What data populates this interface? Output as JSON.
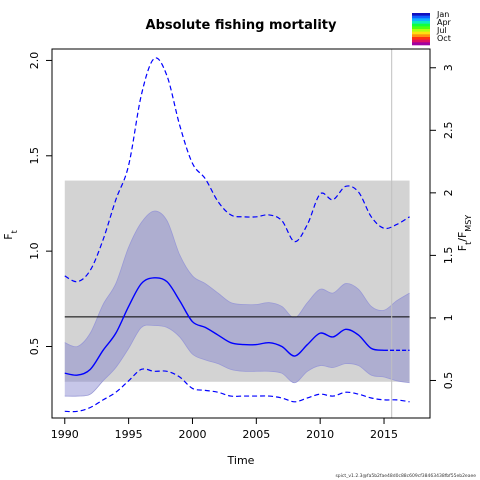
{
  "chart_data": {
    "type": "line",
    "title": "Absolute fishing mortality",
    "xlabel": "Time",
    "ylabel_left": "F_t",
    "ylabel_right": "F_t/F_MSY",
    "xlim": [
      1989.0,
      2018.6
    ],
    "ylim": [
      0.125,
      2.06
    ],
    "ylim_right": [
      0.2,
      3.15
    ],
    "x_ticks": [
      1990,
      1995,
      2000,
      2005,
      2010,
      2015
    ],
    "x_tick_labels": [
      "1990",
      "1995",
      "2000",
      "2005",
      "2010",
      "2015"
    ],
    "y_ticks": [
      0.5,
      1.0,
      1.5,
      2.0
    ],
    "y_tick_labels": [
      "0.5",
      "1.0",
      "1.5",
      "2.0"
    ],
    "y_right_ticks": [
      0.5,
      1,
      1.5,
      2,
      2.5,
      3
    ],
    "y_right_tick_labels": [
      "0.5",
      "1",
      "1.5",
      "2",
      "2.5",
      "3"
    ],
    "fmsy": 0.655,
    "fmsy_ci": [
      0.315,
      1.37
    ],
    "last_obs_year": 2015.6,
    "x": [
      1990,
      1991,
      1992,
      1993,
      1994,
      1995,
      1996,
      1997,
      1998,
      1999,
      2000,
      2001,
      2002,
      2003,
      2004,
      2005,
      2006,
      2007,
      2008,
      2009,
      2010,
      2011,
      2012,
      2013,
      2014,
      2015,
      2016,
      2017
    ],
    "series": [
      {
        "name": "",
        "role": "estimate",
        "values": [
          0.36,
          0.35,
          0.38,
          0.48,
          0.57,
          0.71,
          0.83,
          0.86,
          0.84,
          0.74,
          0.63,
          0.6,
          0.56,
          0.52,
          0.51,
          0.51,
          0.52,
          0.5,
          0.45,
          0.51,
          0.57,
          0.55,
          0.59,
          0.56,
          0.49,
          0.48,
          0.48,
          0.48
        ]
      },
      {
        "name": "",
        "role": "ci-upper",
        "values": [
          0.52,
          0.5,
          0.57,
          0.72,
          0.83,
          1.02,
          1.15,
          1.21,
          1.16,
          0.98,
          0.87,
          0.83,
          0.78,
          0.73,
          0.72,
          0.72,
          0.73,
          0.71,
          0.65,
          0.73,
          0.8,
          0.78,
          0.83,
          0.8,
          0.71,
          0.69,
          0.74,
          0.78
        ]
      },
      {
        "name": "",
        "role": "ci-lower",
        "values": [
          0.24,
          0.24,
          0.25,
          0.32,
          0.39,
          0.49,
          0.6,
          0.61,
          0.6,
          0.55,
          0.46,
          0.43,
          0.41,
          0.38,
          0.37,
          0.37,
          0.37,
          0.36,
          0.31,
          0.37,
          0.4,
          0.39,
          0.41,
          0.4,
          0.35,
          0.34,
          0.32,
          0.31
        ]
      },
      {
        "name": "",
        "role": "upper-dashed",
        "values": [
          0.87,
          0.84,
          0.9,
          1.06,
          1.27,
          1.45,
          1.82,
          2.01,
          1.92,
          1.66,
          1.46,
          1.38,
          1.26,
          1.19,
          1.18,
          1.18,
          1.19,
          1.16,
          1.05,
          1.14,
          1.3,
          1.27,
          1.34,
          1.31,
          1.18,
          1.12,
          1.14,
          1.18
        ]
      },
      {
        "name": "",
        "role": "lower-dashed",
        "values": [
          0.16,
          0.16,
          0.18,
          0.22,
          0.26,
          0.32,
          0.38,
          0.37,
          0.37,
          0.34,
          0.28,
          0.27,
          0.26,
          0.24,
          0.24,
          0.24,
          0.24,
          0.23,
          0.21,
          0.23,
          0.25,
          0.24,
          0.26,
          0.25,
          0.23,
          0.22,
          0.22,
          0.21
        ]
      }
    ],
    "legend": {
      "placement": "top-right",
      "labels": [
        "Jan",
        "Apr",
        "Jul",
        "Oct"
      ],
      "colors": [
        "#1010c0",
        "#1060ff",
        "#10b0ff",
        "#10e8c0",
        "#10ff40",
        "#50ff10",
        "#b0ff10",
        "#ffe010",
        "#ff9010",
        "#ff3010",
        "#e01060",
        "#a000a0"
      ]
    },
    "colors": {
      "estimate": "#0000ff",
      "ci_fill": "#8080cc",
      "ci_fill_opacity": 0.45,
      "ref_band": "#d3d3d3",
      "ref_line": "#000000",
      "last_obs_line": "#c0c0c0"
    },
    "footer": "spict_v1.2.3@fa5b2fae48d0c88c609cf38463438fbf55eb2eaee"
  }
}
